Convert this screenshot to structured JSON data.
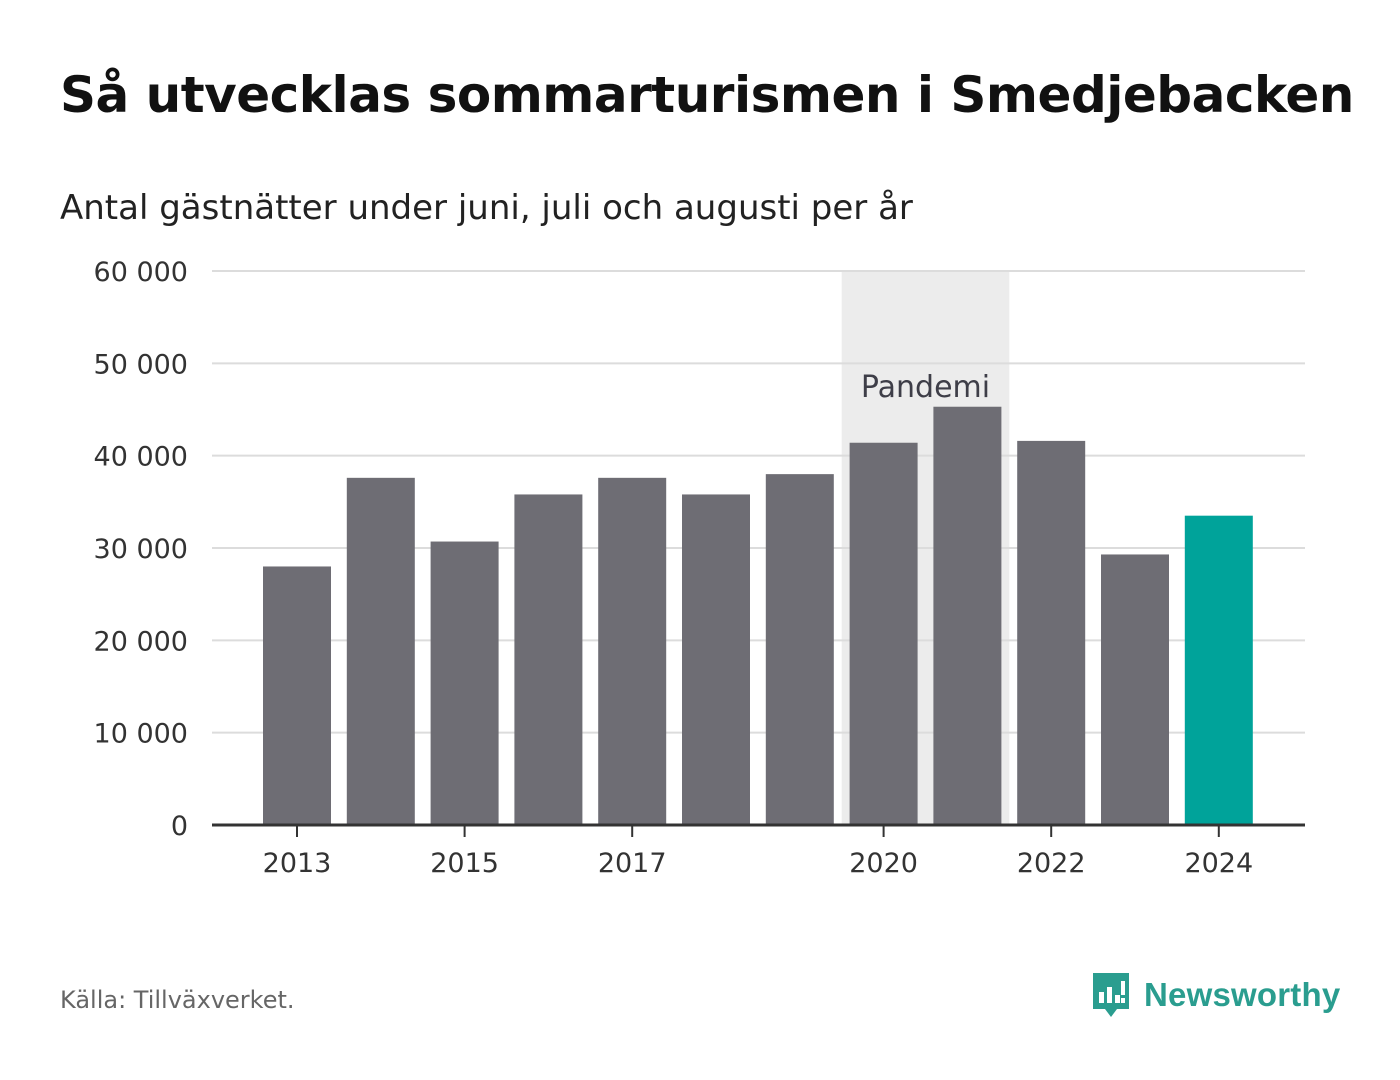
{
  "title": "Så utvecklas sommarturismen i Smedjebacken",
  "subtitle": "Antal gästnätter under juni, juli och augusti per år",
  "source": "Källa: Tillväxverket.",
  "brand": {
    "name": "Newsworthy",
    "icon": "newsworthy-logo-icon",
    "color": "#2a9d8f"
  },
  "chart_data": {
    "type": "bar",
    "categories": [
      "2013",
      "2014",
      "2015",
      "2016",
      "2017",
      "2018",
      "2019",
      "2020",
      "2021",
      "2022",
      "2023",
      "2024"
    ],
    "values": [
      28000,
      37600,
      30700,
      35800,
      37600,
      35800,
      38000,
      41400,
      45300,
      41600,
      29300,
      33500
    ],
    "x_tick_labels": [
      "2013",
      "2015",
      "2017",
      "2020",
      "2022",
      "2024"
    ],
    "y_ticks": [
      0,
      10000,
      20000,
      30000,
      40000,
      50000,
      60000
    ],
    "y_tick_labels": [
      "0",
      "10 000",
      "20 000",
      "30 000",
      "40 000",
      "50 000",
      "60 000"
    ],
    "ylim": [
      0,
      60000
    ],
    "grid": true,
    "highlight": {
      "category": "2024",
      "color": "#00a39a"
    },
    "bar_color": "#6e6d74",
    "annotation": {
      "label": "Pandemi",
      "from": "2020",
      "to": "2021",
      "color": "#ececec"
    }
  }
}
